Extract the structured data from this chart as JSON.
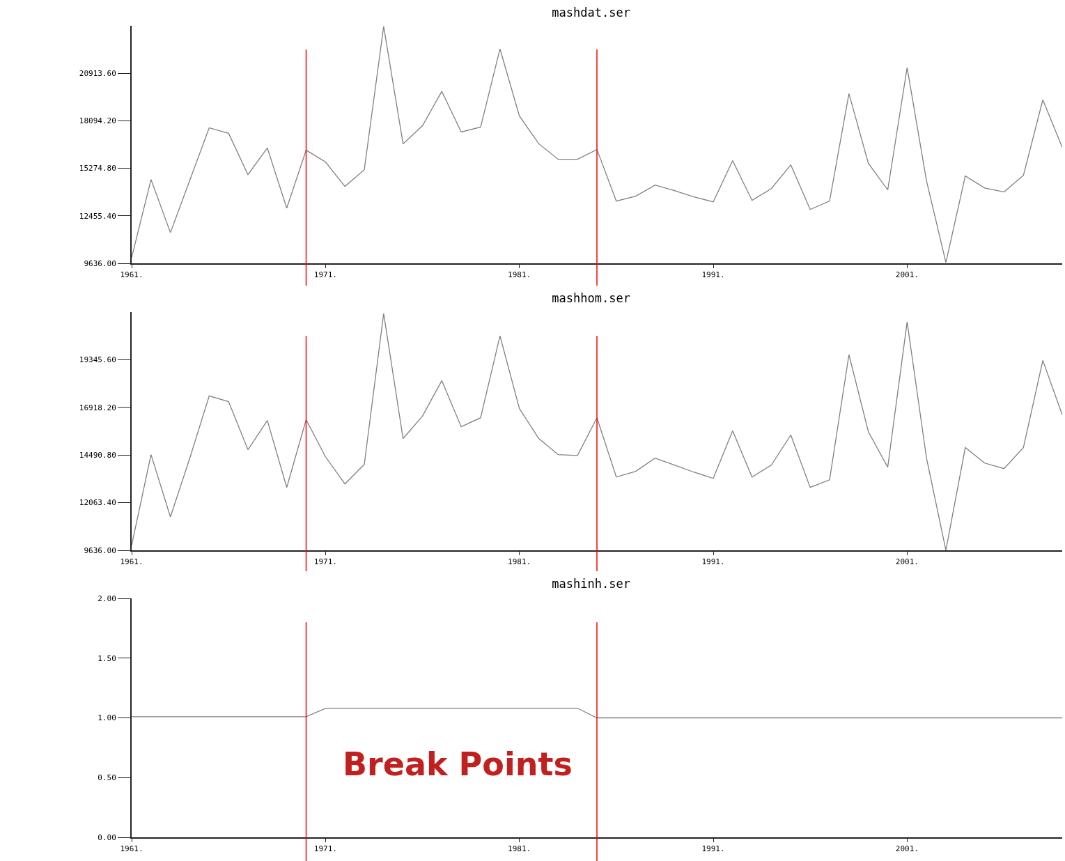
{
  "chart_data": [
    {
      "type": "line",
      "title": "mashdat.ser",
      "x": [
        1961,
        1962,
        1963,
        1964,
        1965,
        1966,
        1967,
        1968,
        1969,
        1970,
        1971,
        1972,
        1973,
        1974,
        1975,
        1976,
        1977,
        1978,
        1979,
        1980,
        1981,
        1982,
        1983,
        1984,
        1985,
        1986,
        1987,
        1988,
        1989,
        1990,
        1991,
        1992,
        1993,
        1994,
        1995,
        1996,
        1997,
        1998,
        1999,
        2000,
        2001,
        2002,
        2003,
        2004,
        2005,
        2006,
        2007,
        2008,
        2009
      ],
      "series": [
        {
          "color": "#808080",
          "values": [
            9970,
            14610,
            11460,
            14570,
            17680,
            17350,
            14900,
            16480,
            12910,
            16350,
            15650,
            14200,
            15190,
            23700,
            16730,
            17800,
            19840,
            17430,
            17720,
            22360,
            18380,
            16730,
            15810,
            15810,
            16390,
            13330,
            13620,
            14280,
            13950,
            13580,
            13280,
            15730,
            13370,
            14070,
            15480,
            12830,
            13330,
            19710,
            15570,
            13990,
            21250,
            14530,
            9680,
            14820,
            14110,
            13870,
            14860,
            19340,
            16520
          ]
        }
      ],
      "xlim": [
        1961,
        2009
      ],
      "xticks": [
        {
          "value": 1961,
          "label": "1961."
        },
        {
          "value": 1971,
          "label": "1971."
        },
        {
          "value": 1981,
          "label": "1981."
        },
        {
          "value": 1991,
          "label": "1991."
        },
        {
          "value": 2001,
          "label": "2001."
        }
      ],
      "ylim": [
        9636,
        23733
      ],
      "yticks": [
        {
          "value": 9636,
          "label": "9636.00"
        },
        {
          "value": 12455.4,
          "label": "12455.40"
        },
        {
          "value": 15274.8,
          "label": "15274.80"
        },
        {
          "value": 18094.2,
          "label": "18094.20"
        },
        {
          "value": 20913.6,
          "label": "20913.60"
        }
      ],
      "ref_lines": [
        {
          "axis": "x",
          "value": 1970,
          "color": "#ff0000"
        },
        {
          "axis": "x",
          "value": 1985,
          "color": "#ff0000"
        }
      ]
    },
    {
      "type": "line",
      "title": "mashhom.ser",
      "x": [
        1961,
        1962,
        1963,
        1964,
        1965,
        1966,
        1967,
        1968,
        1969,
        1970,
        1971,
        1972,
        1973,
        1974,
        1975,
        1976,
        1977,
        1978,
        1979,
        1980,
        1981,
        1982,
        1983,
        1984,
        1985,
        1986,
        1987,
        1988,
        1989,
        1990,
        1991,
        1992,
        1993,
        1994,
        1995,
        1996,
        1997,
        1998,
        1999,
        2000,
        2001,
        2002,
        2003,
        2004,
        2005,
        2006,
        2007,
        2008,
        2009
      ],
      "series": [
        {
          "color": "#808080",
          "values": [
            9890,
            14510,
            11340,
            14330,
            17500,
            17210,
            14760,
            16250,
            12840,
            16290,
            14400,
            13020,
            14010,
            21700,
            15330,
            16470,
            18280,
            15930,
            16390,
            20560,
            16860,
            15330,
            14510,
            14470,
            16390,
            13370,
            13660,
            14330,
            13980,
            13620,
            13300,
            15720,
            13370,
            13980,
            15510,
            12840,
            13230,
            19600,
            15680,
            13870,
            21270,
            14330,
            9640,
            14870,
            14080,
            13800,
            14870,
            19310,
            16540
          ]
        }
      ],
      "xlim": [
        1961,
        2009
      ],
      "xticks": [
        {
          "value": 1961,
          "label": "1961."
        },
        {
          "value": 1971,
          "label": "1971."
        },
        {
          "value": 1981,
          "label": "1981."
        },
        {
          "value": 1991,
          "label": "1991."
        },
        {
          "value": 2001,
          "label": "2001."
        }
      ],
      "ylim": [
        9636,
        21773
      ],
      "yticks": [
        {
          "value": 9636,
          "label": "9636.00"
        },
        {
          "value": 12063.4,
          "label": "12063.40"
        },
        {
          "value": 14490.8,
          "label": "14490.80"
        },
        {
          "value": 16918.2,
          "label": "16918.20"
        },
        {
          "value": 19345.6,
          "label": "19345.60"
        }
      ],
      "ref_lines": [
        {
          "axis": "x",
          "value": 1970,
          "color": "#ff0000"
        },
        {
          "axis": "x",
          "value": 1985,
          "color": "#ff0000"
        }
      ]
    },
    {
      "type": "line",
      "title": "mashinh.ser",
      "x": [
        1961,
        1962,
        1963,
        1964,
        1965,
        1966,
        1967,
        1968,
        1969,
        1970,
        1971,
        1972,
        1973,
        1974,
        1975,
        1976,
        1977,
        1978,
        1979,
        1980,
        1981,
        1982,
        1983,
        1984,
        1985,
        1986,
        1987,
        1988,
        1989,
        1990,
        1991,
        1992,
        1993,
        1994,
        1995,
        1996,
        1997,
        1998,
        1999,
        2000,
        2001,
        2002,
        2003,
        2004,
        2005,
        2006,
        2007,
        2008,
        2009
      ],
      "series": [
        {
          "color": "#808080",
          "values": [
            1.01,
            1.01,
            1.01,
            1.01,
            1.01,
            1.01,
            1.01,
            1.01,
            1.01,
            1.01,
            1.08,
            1.08,
            1.08,
            1.08,
            1.08,
            1.08,
            1.08,
            1.08,
            1.08,
            1.08,
            1.08,
            1.08,
            1.08,
            1.08,
            1.0,
            1.0,
            1.0,
            1.0,
            1.0,
            1.0,
            1.0,
            1.0,
            1.0,
            1.0,
            1.0,
            1.0,
            1.0,
            1.0,
            1.0,
            1.0,
            1.0,
            1.0,
            1.0,
            1.0,
            1.0,
            1.0,
            1.0,
            1.0,
            1.0
          ]
        }
      ],
      "xlim": [
        1961,
        2009
      ],
      "xticks": [
        {
          "value": 1961,
          "label": "1961."
        },
        {
          "value": 1971,
          "label": "1971."
        },
        {
          "value": 1981,
          "label": "1981."
        },
        {
          "value": 1991,
          "label": "1991."
        },
        {
          "value": 2001,
          "label": "2001."
        }
      ],
      "ylim": [
        0,
        2
      ],
      "yticks": [
        {
          "value": 0,
          "label": "0.00"
        },
        {
          "value": 0.5,
          "label": "0.50"
        },
        {
          "value": 1,
          "label": "1.00"
        },
        {
          "value": 1.5,
          "label": "1.50"
        },
        {
          "value": 2,
          "label": "2.00"
        }
      ],
      "ref_lines": [
        {
          "axis": "x",
          "value": 1970,
          "color": "#ff0000"
        },
        {
          "axis": "x",
          "value": 1985,
          "color": "#ff0000"
        }
      ],
      "annotations": [
        "Break Points"
      ]
    }
  ]
}
